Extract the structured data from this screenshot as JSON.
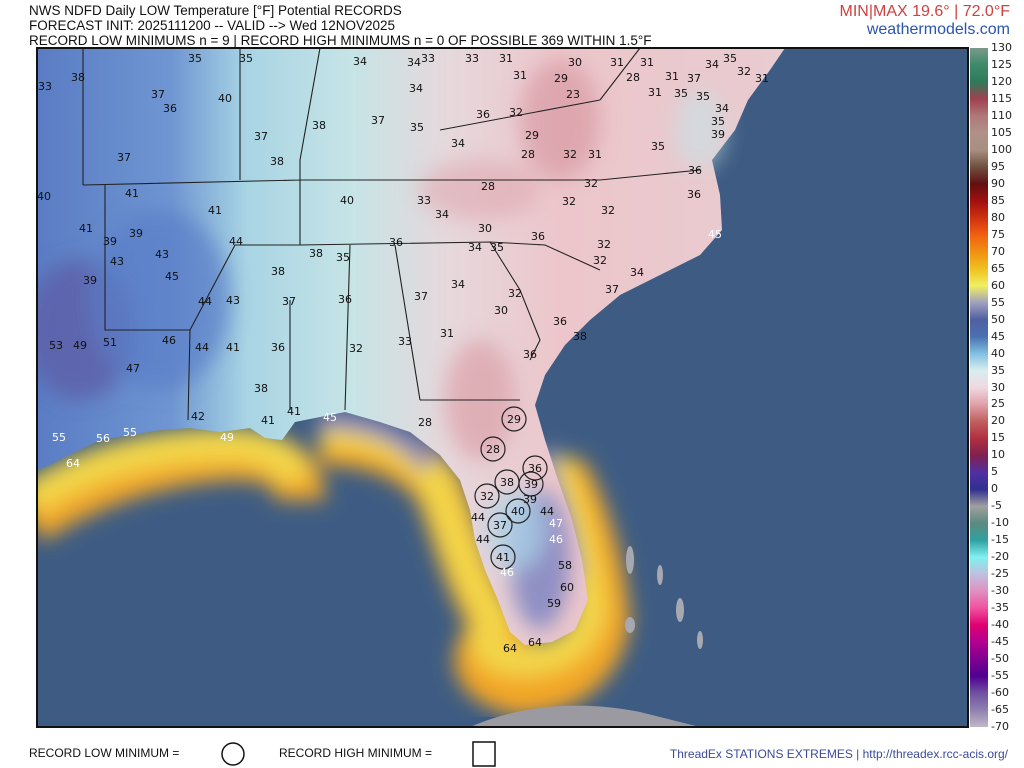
{
  "header": {
    "line1": "NWS NDFD Daily LOW Temperature [°F] Potential RECORDS",
    "line2": "FORECAST INIT: 2025111200 -- VALID --> Wed 12NOV2025",
    "line3": "RECORD LOW MINIMUMS n = 9 | RECORD HIGH MINIMUMS n = 0 OF POSSIBLE 369 WITHIN 1.5°F",
    "minmax": "MIN|MAX 19.6° | 72.0°F",
    "site": "weathermodels.com"
  },
  "footer": {
    "record_low_label": "RECORD LOW MINIMUM =",
    "record_low_symbol": "circle",
    "record_high_label": "RECORD HIGH MINIMUM =",
    "record_high_symbol": "square",
    "source": "ThreadEx STATIONS EXTREMES | http://threadex.rcc-acis.org/"
  },
  "colorbar": {
    "unit": "°F",
    "ticks": [
      "130",
      "125",
      "120",
      "115",
      "110",
      "105",
      "100",
      "95",
      "90",
      "85",
      "80",
      "75",
      "70",
      "65",
      "60",
      "55",
      "50",
      "45",
      "40",
      "35",
      "30",
      "25",
      "20",
      "15",
      "10",
      "5",
      "0",
      "-5",
      "-10",
      "-15",
      "-20",
      "-25",
      "-30",
      "-35",
      "-40",
      "-45",
      "-50",
      "-55",
      "-60",
      "-65",
      "-70"
    ],
    "colors": [
      "#7a9a8a",
      "#3d8a6a",
      "#2f7a5a",
      "#a04050",
      "#b07878",
      "#b09088",
      "#a89080",
      "#705040",
      "#601010",
      "#a01010",
      "#d03010",
      "#f06010",
      "#f09010",
      "#f0c020",
      "#f0f060",
      "#a0a0c0",
      "#5060a0",
      "#4a70b0",
      "#80c0e0",
      "#d8eef0",
      "#f0d8e0",
      "#e0a0a8",
      "#c06060",
      "#b03040",
      "#802050",
      "#5030a0",
      "#303090",
      "#a0a0a0",
      "#5a8a80",
      "#30a0a0",
      "#80f0f0",
      "#c0c0e0",
      "#e090c0",
      "#f050a0",
      "#e00070",
      "#b00090",
      "#800090",
      "#500090",
      "#7050a0",
      "#9080b0",
      "#c0b8c8"
    ]
  },
  "map_colors": {
    "ocean": "#3e5c83",
    "cold_land": "#5f82c6",
    "mild_land": "#c4e2e4",
    "warm_land": "#ecc8cc",
    "coastal_warm": "#f2d548",
    "coastal_hot": "#f3a626"
  },
  "stations": [
    {
      "v": "33"
    },
    {
      "v": "38"
    },
    {
      "v": "35"
    },
    {
      "v": "35"
    },
    {
      "v": "34"
    },
    {
      "v": "33"
    },
    {
      "v": "33"
    },
    {
      "v": "31"
    },
    {
      "v": "31"
    },
    {
      "v": "29"
    },
    {
      "v": "30"
    },
    {
      "v": "23"
    },
    {
      "v": "31"
    },
    {
      "v": "28"
    },
    {
      "v": "31"
    },
    {
      "v": "31"
    },
    {
      "v": "31"
    },
    {
      "v": "35"
    },
    {
      "v": "37"
    },
    {
      "v": "35"
    },
    {
      "v": "34"
    },
    {
      "v": "35"
    },
    {
      "v": "32"
    },
    {
      "v": "31"
    },
    {
      "v": "34"
    },
    {
      "v": "35"
    },
    {
      "v": "39"
    },
    {
      "v": "35"
    },
    {
      "v": "36"
    },
    {
      "v": "36"
    },
    {
      "v": "45",
      "white": true
    },
    {
      "v": "37"
    },
    {
      "v": "36"
    },
    {
      "v": "40"
    },
    {
      "v": "37"
    },
    {
      "v": "38"
    },
    {
      "v": "38"
    },
    {
      "v": "37"
    },
    {
      "v": "34"
    },
    {
      "v": "34"
    },
    {
      "v": "35"
    },
    {
      "v": "36"
    },
    {
      "v": "32"
    },
    {
      "v": "29"
    },
    {
      "v": "28"
    },
    {
      "v": "32"
    },
    {
      "v": "31"
    },
    {
      "v": "34"
    },
    {
      "v": "28"
    },
    {
      "v": "32"
    },
    {
      "v": "32"
    },
    {
      "v": "32"
    },
    {
      "v": "33"
    },
    {
      "v": "34"
    },
    {
      "v": "30"
    },
    {
      "v": "36"
    },
    {
      "v": "32"
    },
    {
      "v": "32"
    },
    {
      "v": "34"
    },
    {
      "v": "37"
    },
    {
      "v": "37"
    },
    {
      "v": "41"
    },
    {
      "v": "40"
    },
    {
      "v": "41"
    },
    {
      "v": "41"
    },
    {
      "v": "39"
    },
    {
      "v": "39"
    },
    {
      "v": "43"
    },
    {
      "v": "43"
    },
    {
      "v": "45"
    },
    {
      "v": "39"
    },
    {
      "v": "44"
    },
    {
      "v": "40"
    },
    {
      "v": "36"
    },
    {
      "v": "34"
    },
    {
      "v": "35"
    },
    {
      "v": "38"
    },
    {
      "v": "38"
    },
    {
      "v": "35"
    },
    {
      "v": "44"
    },
    {
      "v": "43"
    },
    {
      "v": "37"
    },
    {
      "v": "37"
    },
    {
      "v": "34"
    },
    {
      "v": "32"
    },
    {
      "v": "30"
    },
    {
      "v": "36"
    },
    {
      "v": "36"
    },
    {
      "v": "38"
    },
    {
      "v": "53"
    },
    {
      "v": "49"
    },
    {
      "v": "51"
    },
    {
      "v": "46"
    },
    {
      "v": "44"
    },
    {
      "v": "41"
    },
    {
      "v": "36"
    },
    {
      "v": "32"
    },
    {
      "v": "33"
    },
    {
      "v": "31"
    },
    {
      "v": "36"
    },
    {
      "v": "47"
    },
    {
      "v": "38"
    },
    {
      "v": "42"
    },
    {
      "v": "41"
    },
    {
      "v": "41"
    },
    {
      "v": "45",
      "white": true
    },
    {
      "v": "28"
    },
    {
      "v": "29",
      "record_low": true
    },
    {
      "v": "55",
      "white": true
    },
    {
      "v": "56",
      "white": true
    },
    {
      "v": "55",
      "white": true
    },
    {
      "v": "49",
      "white": true
    },
    {
      "v": "64",
      "white": true
    },
    {
      "v": "28",
      "record_low": true
    },
    {
      "v": "36",
      "record_low": true
    },
    {
      "v": "38",
      "record_low": true
    },
    {
      "v": "39",
      "record_low": true
    },
    {
      "v": "32",
      "record_low": true
    },
    {
      "v": "39"
    },
    {
      "v": "40",
      "record_low": true
    },
    {
      "v": "37",
      "record_low": true
    },
    {
      "v": "44"
    },
    {
      "v": "44"
    },
    {
      "v": "47",
      "white": true
    },
    {
      "v": "46",
      "white": true
    },
    {
      "v": "44"
    },
    {
      "v": "41",
      "record_low": true
    },
    {
      "v": "46",
      "white": true
    },
    {
      "v": "58"
    },
    {
      "v": "60"
    },
    {
      "v": "59"
    },
    {
      "v": "64"
    },
    {
      "v": "64"
    }
  ]
}
